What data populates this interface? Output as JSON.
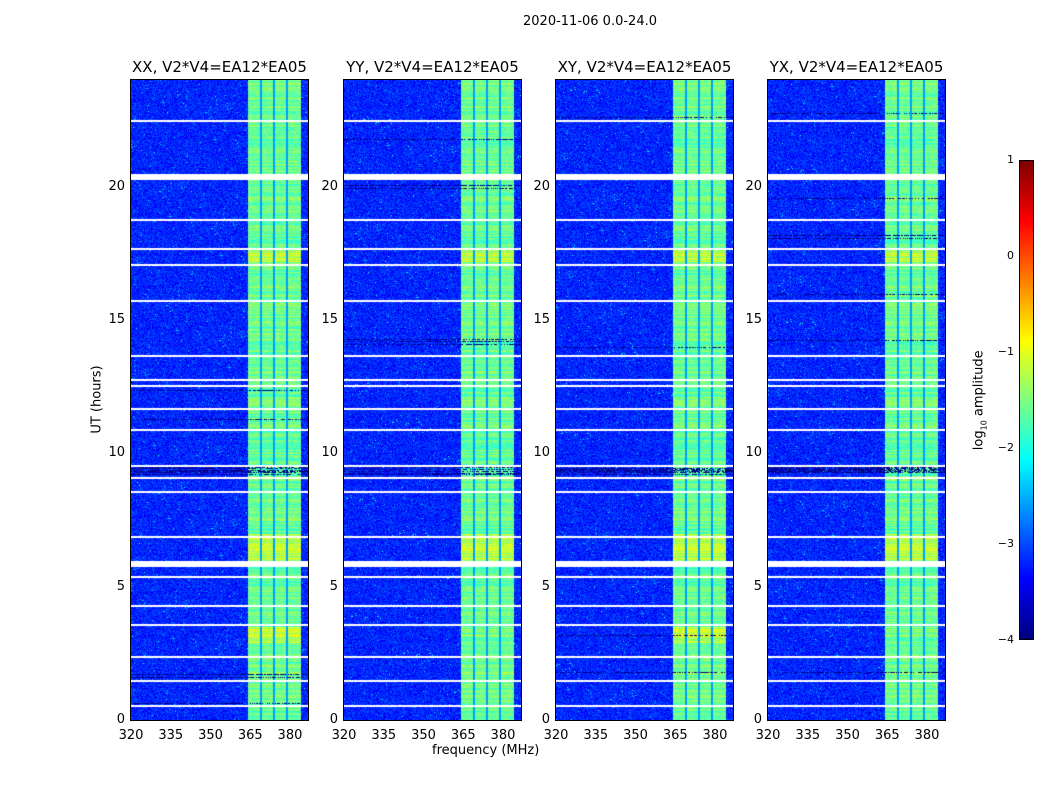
{
  "suptitle": "2020-11-06 0.0-24.0",
  "chart_data": {
    "type": "heatmap",
    "title": "2020-11-06 0.0-24.0",
    "xlabel": "frequency (MHz)",
    "ylabel": "UT (hours)",
    "xlim": [
      320,
      386.8
    ],
    "ylim": [
      0,
      24
    ],
    "xticks": [
      "320",
      "335",
      "350",
      "365",
      "380"
    ],
    "xtick_values": [
      320,
      335,
      350,
      365,
      380
    ],
    "yticks": [
      "0",
      "5",
      "10",
      "15",
      "20"
    ],
    "ytick_values": [
      0,
      5,
      10,
      15,
      20
    ],
    "panels": [
      {
        "title": "XX, V2*V4=EA12*EA05",
        "name": "xx"
      },
      {
        "title": "YY, V2*V4=EA12*EA05",
        "name": "yy"
      },
      {
        "title": "XY, V2*V4=EA12*EA05",
        "name": "xy"
      },
      {
        "title": "YX, V2*V4=EA12*EA05",
        "name": "yx"
      }
    ],
    "band_mhz": [
      364,
      384
    ],
    "band_gaps_mhz": [
      368.8,
      373.8,
      378.8
    ],
    "background_log10_amplitude": -3.2,
    "band_log10_amplitude": -1.6,
    "flagged_hours": [
      0.55,
      1.5,
      2.4,
      3.6,
      4.3,
      5.4,
      5.9,
      6.9,
      8.6,
      9.1,
      9.55,
      10.9,
      11.7,
      12.55,
      12.8,
      13.7,
      15.75,
      17.1,
      17.7,
      18.8,
      20.4,
      22.5
    ],
    "colorbar": {
      "label": "log10 amplitude",
      "label_main": "log",
      "label_sub": "10",
      "label_rest": " amplitude",
      "ticks": [
        "1",
        "0",
        "−1",
        "−2",
        "−3",
        "−4"
      ],
      "tick_values": [
        1,
        0,
        -1,
        -2,
        -3,
        -4
      ],
      "range": [
        -4,
        1
      ],
      "colormap": "jet"
    }
  }
}
